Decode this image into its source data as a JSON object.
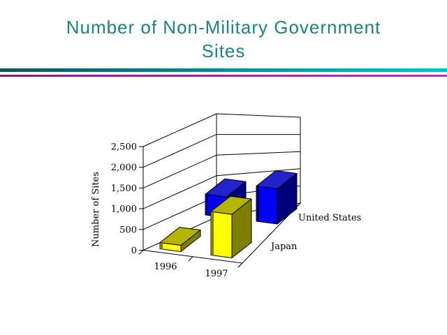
{
  "slide": {
    "title": {
      "line1": "Number of Non-Military Government",
      "line2": "Sites",
      "color": "#1b8383"
    },
    "dividers": {
      "teal_from": "#0f5555",
      "teal_to": "#00c2c2",
      "magenta_from": "#aa00aa",
      "magenta_to": "#ff00ff"
    }
  },
  "chart_data": {
    "type": "bar",
    "projection": "3d-column",
    "title": "",
    "value_axis_title": "Number of Sites",
    "categories": [
      "1996",
      "1997"
    ],
    "series": [
      {
        "name": "Japan",
        "values": [
          150,
          1050
        ],
        "color": {
          "front": "#ffff00",
          "top": "#b5b500",
          "side": "#7e7e00"
        }
      },
      {
        "name": "United States",
        "values": [
          500,
          850
        ],
        "color": {
          "front": "#0202f8",
          "top": "#2323cd",
          "side": "#00007d"
        }
      }
    ],
    "ylim": [
      0,
      2500
    ],
    "value_ticks": [
      0,
      500,
      1000,
      1500,
      2000,
      2500
    ],
    "value_tick_labels": [
      "0",
      "500",
      "1,000",
      "1,500",
      "2,000",
      "2,500"
    ],
    "grid": true,
    "legend": "none",
    "wall_color": "#ffffff",
    "line_color": "#000000"
  }
}
